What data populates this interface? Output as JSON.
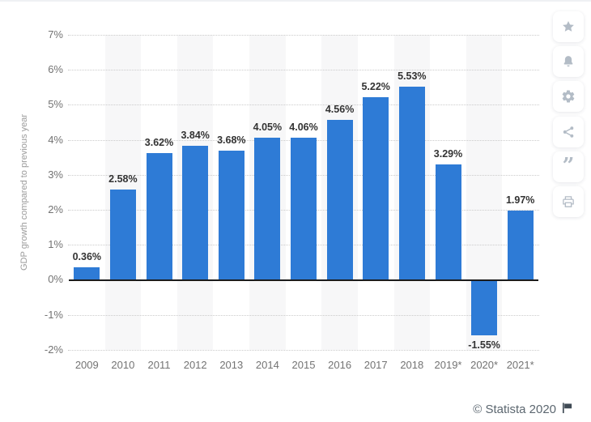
{
  "chart_data": {
    "type": "bar",
    "title": "",
    "ylabel": "GDP growth compared to previous year",
    "xlabel": "",
    "categories": [
      "2009",
      "2010",
      "2011",
      "2012",
      "2013",
      "2014",
      "2015",
      "2016",
      "2017",
      "2018",
      "2019*",
      "2020*",
      "2021*"
    ],
    "values": [
      0.36,
      2.58,
      3.62,
      3.84,
      3.68,
      4.05,
      4.06,
      4.56,
      5.22,
      5.53,
      3.29,
      -1.55,
      1.97
    ],
    "value_labels": [
      "0.36%",
      "2.58%",
      "3.62%",
      "3.84%",
      "3.68%",
      "4.05%",
      "4.06%",
      "4.56%",
      "5.22%",
      "5.53%",
      "3.29%",
      "-1.55%",
      "1.97%"
    ],
    "ylim": [
      -2,
      7
    ],
    "yticks": [
      {
        "value": 7,
        "label": "7%"
      },
      {
        "value": 6,
        "label": "6%"
      },
      {
        "value": 5,
        "label": "5%"
      },
      {
        "value": 4,
        "label": "4%"
      },
      {
        "value": 3,
        "label": "3%"
      },
      {
        "value": 2,
        "label": "2%"
      },
      {
        "value": 1,
        "label": "1%"
      },
      {
        "value": 0,
        "label": "0%"
      },
      {
        "value": -1,
        "label": "-1%"
      },
      {
        "value": -2,
        "label": "-2%"
      }
    ],
    "grid": "dotted-horizontal",
    "legend": "none",
    "colors": {
      "bar": "#2e7bd6",
      "value_label": "#333333",
      "axis_text": "#737373",
      "y_title": "#9b9b9b",
      "gridline": "#cbcbcb",
      "zero_axis": "#1c1c1c",
      "column_stripe": "#f7f7f8"
    }
  },
  "sidebar": {
    "buttons": [
      {
        "name": "favorite",
        "icon": "star-icon"
      },
      {
        "name": "notifications",
        "icon": "bell-icon"
      },
      {
        "name": "settings",
        "icon": "gear-icon"
      },
      {
        "name": "share",
        "icon": "share-icon"
      },
      {
        "name": "cite",
        "icon": "quote-icon"
      },
      {
        "name": "print",
        "icon": "print-icon"
      }
    ],
    "icon_color": "#b3bcc6"
  },
  "footer": {
    "copyright": "© Statista 2020",
    "icon": "flag-icon",
    "flag_color": "#3f4a54"
  }
}
